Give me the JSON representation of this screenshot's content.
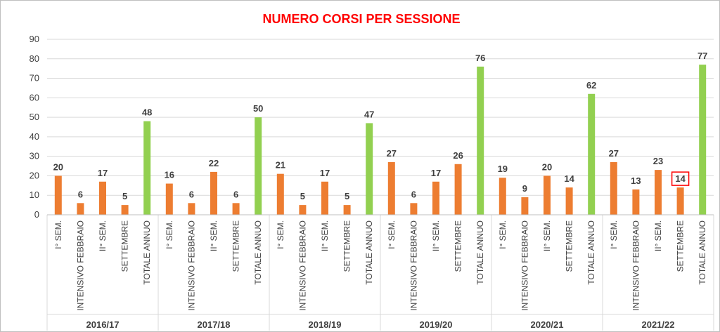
{
  "chart_data": {
    "type": "bar",
    "title": "NUMERO CORSI PER SESSIONE",
    "title_color": "#ff0000",
    "ylim": [
      0,
      90
    ],
    "yticks": [
      "0",
      "10",
      "20",
      "30",
      "40",
      "50",
      "60",
      "70",
      "80",
      "90"
    ],
    "grid": true,
    "colors": {
      "session": "#ed7d31",
      "total": "#92d050",
      "highlight": "#ff0000"
    },
    "groups": [
      {
        "label": "2016/17",
        "categories": [
          "I° SEM.",
          "INTENSIVO FEBBRAIO",
          "II° SEM.",
          "SETTEMBRE",
          "TOTALE ANNUO"
        ],
        "values": [
          20,
          6,
          17,
          5,
          48
        ]
      },
      {
        "label": "2017/18",
        "categories": [
          "I° SEM.",
          "INTENSIVO FEBBRAIO",
          "II° SEM.",
          "SETTEMBRE",
          "TOTALE ANNUO"
        ],
        "values": [
          16,
          6,
          22,
          6,
          50
        ]
      },
      {
        "label": "2018/19",
        "categories": [
          "I° SEM.",
          "INTENSIVO FEBBRAIO",
          "II° SEM.",
          "SETTEMBRE",
          "TOTALE ANNUO"
        ],
        "values": [
          21,
          5,
          17,
          5,
          47
        ]
      },
      {
        "label": "2019/20",
        "categories": [
          "I° SEM.",
          "INTENSIVO FEBBRAIO",
          "II° SEM.",
          "SETTEMBRE",
          "TOTALE ANNUO"
        ],
        "values": [
          27,
          6,
          17,
          26,
          76
        ]
      },
      {
        "label": "2020/21",
        "categories": [
          "I° SEM.",
          "INTENSIVO FEBBRAIO",
          "II° SEM.",
          "SETTEMBRE",
          "TOTALE ANNUO"
        ],
        "values": [
          19,
          9,
          20,
          14,
          62
        ]
      },
      {
        "label": "2021/22",
        "categories": [
          "I° SEM.",
          "INTENSIVO FEBBRAIO",
          "II° SEM.",
          "SETTEMBRE",
          "TOTALE ANNUO"
        ],
        "values": [
          27,
          13,
          23,
          14,
          77
        ]
      }
    ],
    "highlighted": {
      "group": "2021/22",
      "category": "SETTEMBRE"
    }
  }
}
